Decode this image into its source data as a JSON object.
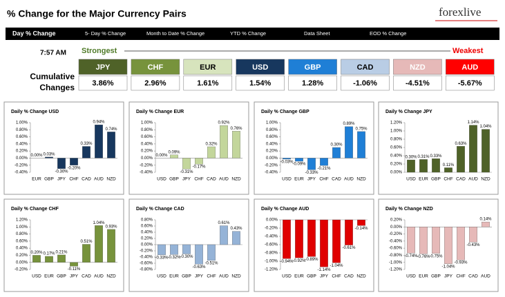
{
  "header": {
    "title": "% Change for the Major Currency Pairs",
    "logo": "forexlive"
  },
  "tabs": [
    "Day % Change",
    "5- Day % Change",
    "Month to Date % Change",
    "YTD % Change",
    "Data Sheet",
    "EOD % Change"
  ],
  "strength": {
    "time": "7:57 AM",
    "strongest": "Strongest",
    "weakest": "Weakest",
    "row_label": [
      "Cumulative",
      "Changes"
    ],
    "items": [
      {
        "currency": "JPY",
        "change": "3.86%",
        "color": "#4f6228",
        "text": "#ffffff"
      },
      {
        "currency": "CHF",
        "change": "2.96%",
        "color": "#77933c",
        "text": "#ffffff"
      },
      {
        "currency": "EUR",
        "change": "1.61%",
        "color": "#d7e4bd",
        "text": "#000000"
      },
      {
        "currency": "USD",
        "change": "1.54%",
        "color": "#17375e",
        "text": "#ffffff"
      },
      {
        "currency": "GBP",
        "change": "1.28%",
        "color": "#1f7fd6",
        "text": "#ffffff"
      },
      {
        "currency": "CAD",
        "change": "-1.06%",
        "color": "#b9cde5",
        "text": "#000000"
      },
      {
        "currency": "NZD",
        "change": "-4.51%",
        "color": "#e6b9b8",
        "text": "#ffffff"
      },
      {
        "currency": "AUD",
        "change": "-5.67%",
        "color": "#ff0000",
        "text": "#ffffff"
      }
    ]
  },
  "chart_data": [
    {
      "type": "bar",
      "title": "Daily % Change USD",
      "color": "#17375e",
      "categories": [
        "EUR",
        "GBP",
        "JPY",
        "CHF",
        "CAD",
        "AUD",
        "NZD"
      ],
      "values": [
        0.0,
        0.03,
        -0.3,
        -0.2,
        0.33,
        0.94,
        0.74
      ],
      "value_labels": [
        "0.00%",
        "0.03%",
        "-0.30%",
        "-0.20%",
        "0.33%",
        "0.94%",
        "0.74%"
      ],
      "ylim": [
        -0.4,
        1.0
      ],
      "yticks": [
        {
          "value": -0.4,
          "label": "-0.40%"
        },
        {
          "value": -0.2,
          "label": "-0.20%"
        },
        {
          "value": 0,
          "label": "0.00%"
        },
        {
          "value": 0.2,
          "label": "0.20%"
        },
        {
          "value": 0.4,
          "label": "0.40%"
        },
        {
          "value": 0.6,
          "label": "0.60%"
        },
        {
          "value": 0.8,
          "label": "0.80%"
        },
        {
          "value": 1.0,
          "label": "1.00%"
        }
      ]
    },
    {
      "type": "bar",
      "title": "Daily % Change EUR",
      "color": "#c3d69b",
      "categories": [
        "USD",
        "GBP",
        "JPY",
        "CHF",
        "CAD",
        "AUD",
        "NZD"
      ],
      "values": [
        0.0,
        0.09,
        -0.31,
        -0.17,
        0.32,
        0.92,
        0.76
      ],
      "value_labels": [
        "0.00%",
        "0.09%",
        "-0.31%",
        "-0.17%",
        "0.32%",
        "0.92%",
        "0.76%"
      ],
      "ylim": [
        -0.4,
        1.0
      ],
      "yticks": [
        {
          "value": -0.4,
          "label": "-0.40%"
        },
        {
          "value": -0.2,
          "label": "-0.20%"
        },
        {
          "value": 0,
          "label": "0.00%"
        },
        {
          "value": 0.2,
          "label": "0.20%"
        },
        {
          "value": 0.4,
          "label": "0.40%"
        },
        {
          "value": 0.6,
          "label": "0.60%"
        },
        {
          "value": 0.8,
          "label": "0.80%"
        },
        {
          "value": 1.0,
          "label": "1.00%"
        }
      ]
    },
    {
      "type": "bar",
      "title": "Daily % Change GBP",
      "color": "#1f7fd6",
      "categories": [
        "USD",
        "EUR",
        "JPY",
        "CHF",
        "CAD",
        "AUD",
        "NZD"
      ],
      "values": [
        -0.03,
        -0.09,
        -0.33,
        -0.21,
        0.3,
        0.89,
        0.75
      ],
      "value_labels": [
        "-0.03%",
        "-0.09%",
        "-0.33%",
        "-0.21%",
        "0.30%",
        "0.89%",
        "0.75%"
      ],
      "ylim": [
        -0.4,
        1.0
      ],
      "yticks": [
        {
          "value": -0.4,
          "label": "-0.40%"
        },
        {
          "value": -0.2,
          "label": "-0.20%"
        },
        {
          "value": 0,
          "label": "0.00%"
        },
        {
          "value": 0.2,
          "label": "0.20%"
        },
        {
          "value": 0.4,
          "label": "0.40%"
        },
        {
          "value": 0.6,
          "label": "0.60%"
        },
        {
          "value": 0.8,
          "label": "0.80%"
        },
        {
          "value": 1.0,
          "label": "1.00%"
        }
      ]
    },
    {
      "type": "bar",
      "title": "Daily % Change JPY",
      "color": "#4f6228",
      "categories": [
        "USD",
        "EUR",
        "GBP",
        "CHF",
        "CAD",
        "AUD",
        "NZD"
      ],
      "values": [
        0.3,
        0.31,
        0.33,
        0.11,
        0.63,
        1.14,
        1.04
      ],
      "value_labels": [
        "0.30%",
        "0.31%",
        "0.33%",
        "0.11%",
        "0.63%",
        "1.14%",
        "1.04%"
      ],
      "ylim": [
        0,
        1.2
      ],
      "yticks": [
        {
          "value": 0,
          "label": "0.00%"
        },
        {
          "value": 0.2,
          "label": "0.20%"
        },
        {
          "value": 0.4,
          "label": "0.40%"
        },
        {
          "value": 0.6,
          "label": "0.60%"
        },
        {
          "value": 0.8,
          "label": "0.80%"
        },
        {
          "value": 1.0,
          "label": "1.00%"
        },
        {
          "value": 1.2,
          "label": "1.20%"
        }
      ]
    },
    {
      "type": "bar",
      "title": "Daily % Change CHF",
      "color": "#77933c",
      "categories": [
        "USD",
        "EUR",
        "GBP",
        "JPY",
        "CAD",
        "AUD",
        "NZD"
      ],
      "values": [
        0.2,
        0.17,
        0.21,
        -0.11,
        0.51,
        1.04,
        0.93
      ],
      "value_labels": [
        "0.20%",
        "0.17%",
        "0.21%",
        "-0.11%",
        "0.51%",
        "1.04%",
        "0.93%"
      ],
      "ylim": [
        -0.2,
        1.2
      ],
      "yticks": [
        {
          "value": -0.2,
          "label": "-0.20%"
        },
        {
          "value": 0,
          "label": "0.00%"
        },
        {
          "value": 0.2,
          "label": "0.20%"
        },
        {
          "value": 0.4,
          "label": "0.40%"
        },
        {
          "value": 0.6,
          "label": "0.60%"
        },
        {
          "value": 0.8,
          "label": "0.80%"
        },
        {
          "value": 1.0,
          "label": "1.00%"
        },
        {
          "value": 1.2,
          "label": "1.20%"
        }
      ]
    },
    {
      "type": "bar",
      "title": "Daily % Change CAD",
      "color": "#95b3d7",
      "categories": [
        "USD",
        "EUR",
        "GBP",
        "JPY",
        "CHF",
        "AUD",
        "NZD"
      ],
      "values": [
        -0.33,
        -0.32,
        -0.3,
        -0.63,
        -0.51,
        0.61,
        0.43
      ],
      "value_labels": [
        "-0.33%",
        "-0.32%",
        "-0.30%",
        "-0.63%",
        "-0.51%",
        "0.61%",
        "0.43%"
      ],
      "ylim": [
        -0.8,
        0.8
      ],
      "yticks": [
        {
          "value": -0.8,
          "label": "-0.80%"
        },
        {
          "value": -0.6,
          "label": "-0.60%"
        },
        {
          "value": -0.4,
          "label": "-0.40%"
        },
        {
          "value": -0.2,
          "label": "-0.20%"
        },
        {
          "value": 0,
          "label": "0.00%"
        },
        {
          "value": 0.2,
          "label": "0.20%"
        },
        {
          "value": 0.4,
          "label": "0.40%"
        },
        {
          "value": 0.6,
          "label": "0.60%"
        },
        {
          "value": 0.8,
          "label": "0.80%"
        }
      ]
    },
    {
      "type": "bar",
      "title": "Daily % Change AUD",
      "color": "#e00000",
      "categories": [
        "USD",
        "EUR",
        "GBP",
        "JPY",
        "CHF",
        "CAD",
        "NZD"
      ],
      "values": [
        -0.94,
        -0.92,
        -0.89,
        -1.14,
        -1.04,
        -0.61,
        -0.14
      ],
      "value_labels": [
        "-0.94%",
        "-0.92%",
        "-0.89%",
        "-1.14%",
        "-1.04%",
        "-0.61%",
        "-0.14%"
      ],
      "ylim": [
        -1.2,
        0
      ],
      "yticks": [
        {
          "value": -1.2,
          "label": "-1.20%"
        },
        {
          "value": -1.0,
          "label": "-1.00%"
        },
        {
          "value": -0.8,
          "label": "-0.80%"
        },
        {
          "value": -0.6,
          "label": "-0.60%"
        },
        {
          "value": -0.4,
          "label": "-0.40%"
        },
        {
          "value": -0.2,
          "label": "-0.20%"
        },
        {
          "value": 0,
          "label": "0.00%"
        }
      ]
    },
    {
      "type": "bar",
      "title": "Daily % Change NZD",
      "color": "#e6b9b8",
      "categories": [
        "USD",
        "EUR",
        "GBP",
        "JPY",
        "CHF",
        "CAD",
        "AUD"
      ],
      "values": [
        -0.74,
        -0.76,
        -0.75,
        -1.04,
        -0.93,
        -0.43,
        0.14
      ],
      "value_labels": [
        "-0.74%",
        "-0.76%",
        "-0.75%",
        "-1.04%",
        "-0.93%",
        "-0.43%",
        "0.14%"
      ],
      "ylim": [
        -1.2,
        0.2
      ],
      "yticks": [
        {
          "value": -1.2,
          "label": "-1.20%"
        },
        {
          "value": -1.0,
          "label": "-1.00%"
        },
        {
          "value": -0.8,
          "label": "-0.80%"
        },
        {
          "value": -0.6,
          "label": "-0.60%"
        },
        {
          "value": -0.4,
          "label": "-0.40%"
        },
        {
          "value": -0.2,
          "label": "-0.20%"
        },
        {
          "value": 0,
          "label": "0.00%"
        },
        {
          "value": 0.2,
          "label": "0.20%"
        }
      ]
    }
  ]
}
